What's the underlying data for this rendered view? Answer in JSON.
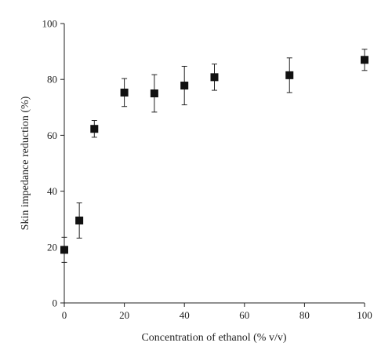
{
  "chart_data": {
    "type": "scatter",
    "xlabel": "Concentration of ethanol (% v/v)",
    "ylabel": "Skin impedance reduction (%)",
    "xlim": [
      0,
      100
    ],
    "ylim": [
      0,
      100
    ],
    "xticks": [
      0,
      20,
      40,
      60,
      80,
      100
    ],
    "yticks": [
      0,
      20,
      40,
      60,
      80,
      100
    ],
    "grid": false,
    "legend": "none",
    "marker": "square",
    "error_bars": true,
    "series": [
      {
        "points": [
          {
            "x": 0,
            "y": 19,
            "err": 4.5
          },
          {
            "x": 5,
            "y": 29.5,
            "err": 6.3
          },
          {
            "x": 10,
            "y": 62.3,
            "err": 3
          },
          {
            "x": 20,
            "y": 75.3,
            "err": 5
          },
          {
            "x": 30,
            "y": 75,
            "err": 6.7
          },
          {
            "x": 40,
            "y": 77.8,
            "err": 6.9
          },
          {
            "x": 50,
            "y": 80.8,
            "err": 4.7
          },
          {
            "x": 75,
            "y": 81.5,
            "err": 6.2
          },
          {
            "x": 100,
            "y": 87,
            "err": 3.8
          }
        ]
      }
    ]
  }
}
